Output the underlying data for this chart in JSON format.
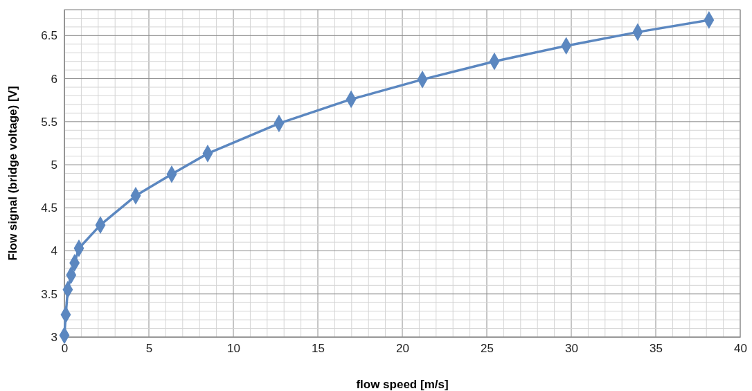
{
  "chart_data": {
    "type": "line",
    "xlabel": "flow speed [m/s]",
    "ylabel": "Flow signal (bridge voltage) [V]",
    "x": [
      0,
      0.08,
      0.2,
      0.4,
      0.6,
      0.86,
      2.13,
      4.22,
      6.35,
      8.48,
      12.7,
      16.97,
      21.19,
      25.45,
      29.7,
      33.93,
      38.15
    ],
    "series": [
      {
        "color": "#5b87c0",
        "values": [
          3.02,
          3.26,
          3.55,
          3.72,
          3.86,
          4.03,
          4.3,
          4.64,
          4.89,
          5.13,
          5.48,
          5.76,
          5.99,
          6.2,
          6.38,
          6.54,
          6.68
        ]
      }
    ],
    "xlim": [
      0,
      40
    ],
    "ylim": [
      3,
      6.8
    ],
    "xticks": [
      0,
      {
        "value": 1,
        "label": null
      },
      {
        "value": 2,
        "label": null
      },
      {
        "value": 3,
        "label": null
      },
      {
        "value": 4,
        "label": null
      },
      5,
      {
        "value": 6,
        "label": null
      },
      {
        "value": 7,
        "label": null
      },
      {
        "value": 8,
        "label": null
      },
      {
        "value": 9,
        "label": null
      },
      10,
      {
        "value": 11,
        "label": null
      },
      {
        "value": 12,
        "label": null
      },
      {
        "value": 13,
        "label": null
      },
      {
        "value": 14,
        "label": null
      },
      15,
      {
        "value": 16,
        "label": null
      },
      {
        "value": 17,
        "label": null
      },
      {
        "value": 18,
        "label": null
      },
      {
        "value": 19,
        "label": null
      },
      20,
      {
        "value": 21,
        "label": null
      },
      {
        "value": 22,
        "label": null
      },
      {
        "value": 23,
        "label": null
      },
      {
        "value": 24,
        "label": null
      },
      25,
      {
        "value": 26,
        "label": null
      },
      {
        "value": 27,
        "label": null
      },
      {
        "value": 28,
        "label": null
      },
      {
        "value": 29,
        "label": null
      },
      30,
      {
        "value": 31,
        "label": null
      },
      {
        "value": 32,
        "label": null
      },
      {
        "value": 33,
        "label": null
      },
      {
        "value": 34,
        "label": null
      },
      35,
      {
        "value": 36,
        "label": null
      },
      {
        "value": 37,
        "label": null
      },
      {
        "value": 38,
        "label": null
      },
      {
        "value": 39,
        "label": null
      },
      40
    ],
    "yticks": [
      3,
      {
        "value": 3.1,
        "label": null
      },
      {
        "value": 3.2,
        "label": null
      },
      {
        "value": 3.3,
        "label": null
      },
      {
        "value": 3.4,
        "label": null
      },
      3.5,
      {
        "value": 3.6,
        "label": null
      },
      {
        "value": 3.7,
        "label": null
      },
      {
        "value": 3.8,
        "label": null
      },
      {
        "value": 3.9,
        "label": null
      },
      4,
      {
        "value": 4.1,
        "label": null
      },
      {
        "value": 4.2,
        "label": null
      },
      {
        "value": 4.3,
        "label": null
      },
      {
        "value": 4.4,
        "label": null
      },
      4.5,
      {
        "value": 4.6,
        "label": null
      },
      {
        "value": 4.7,
        "label": null
      },
      {
        "value": 4.8,
        "label": null
      },
      {
        "value": 4.9,
        "label": null
      },
      5,
      {
        "value": 5.1,
        "label": null
      },
      {
        "value": 5.2,
        "label": null
      },
      {
        "value": 5.3,
        "label": null
      },
      {
        "value": 5.4,
        "label": null
      },
      5.5,
      {
        "value": 5.6,
        "label": null
      },
      {
        "value": 5.7,
        "label": null
      },
      {
        "value": 5.8,
        "label": null
      },
      {
        "value": 5.9,
        "label": null
      },
      6,
      {
        "value": 6.1,
        "label": null
      },
      {
        "value": 6.2,
        "label": null
      },
      {
        "value": 6.3,
        "label": null
      },
      {
        "value": 6.4,
        "label": null
      },
      6.5,
      {
        "value": 6.6,
        "label": null
      },
      {
        "value": 6.7,
        "label": null
      },
      {
        "value": 6.8,
        "label": null
      }
    ],
    "grid": true,
    "marker": "diamond",
    "line_style": "solid"
  }
}
